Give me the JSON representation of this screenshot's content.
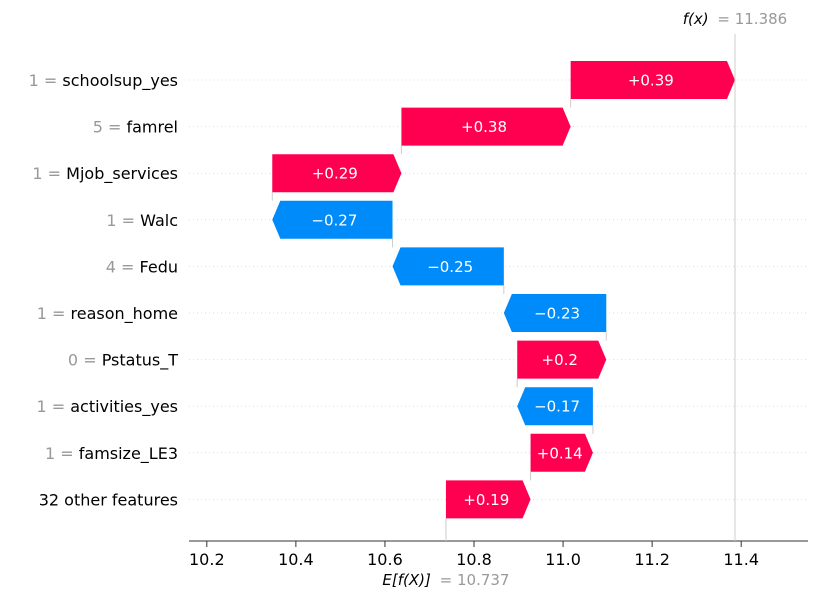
{
  "chart_data": {
    "type": "waterfall",
    "title": "",
    "xlabel": "",
    "ylabel": "",
    "xlim": [
      10.16,
      11.55
    ],
    "xticks": [
      "10.2",
      "10.4",
      "10.6",
      "10.8",
      "11.0",
      "11.2",
      "11.4"
    ],
    "xtick_values": [
      10.2,
      10.4,
      10.6,
      10.8,
      11.0,
      11.2,
      11.4
    ],
    "base_value": 10.737,
    "base_label_prefix": "E[f(X)]",
    "base_label_value": "= 10.737",
    "output_value": 11.386,
    "output_label_prefix": "f(x)",
    "output_label_value": "= 11.386",
    "features": [
      {
        "value": "1",
        "name": "schoolsup_yes",
        "label": "1 = ",
        "name_label": "schoolsup_yes",
        "contribution": 0.39,
        "contribution_label": "+0.39"
      },
      {
        "value": "5",
        "name": "famrel",
        "label": "5 = ",
        "name_label": "famrel",
        "contribution": 0.38,
        "contribution_label": "+0.38"
      },
      {
        "value": "1",
        "name": "Mjob_services",
        "label": "1 = ",
        "name_label": "Mjob_services",
        "contribution": 0.29,
        "contribution_label": "+0.29"
      },
      {
        "value": "1",
        "name": "Walc",
        "label": "1 = ",
        "name_label": "Walc",
        "contribution": -0.27,
        "contribution_label": "−0.27"
      },
      {
        "value": "4",
        "name": "Fedu",
        "label": "4 = ",
        "name_label": "Fedu",
        "contribution": -0.25,
        "contribution_label": "−0.25"
      },
      {
        "value": "1",
        "name": "reason_home",
        "label": "1 = ",
        "name_label": "reason_home",
        "contribution": -0.23,
        "contribution_label": "−0.23"
      },
      {
        "value": "0",
        "name": "Pstatus_T",
        "label": "0 = ",
        "name_label": "Pstatus_T",
        "contribution": 0.2,
        "contribution_label": "+0.2"
      },
      {
        "value": "1",
        "name": "activities_yes",
        "label": "1 = ",
        "name_label": "activities_yes",
        "contribution": -0.17,
        "contribution_label": "−0.17"
      },
      {
        "value": "1",
        "name": "famsize_LE3",
        "label": "1 = ",
        "name_label": "famsize_LE3",
        "contribution": 0.14,
        "contribution_label": "+0.14"
      },
      {
        "value": "",
        "name": "32 other features",
        "label": "",
        "name_label": "32 other features",
        "contribution": 0.19,
        "contribution_label": "+0.19"
      }
    ],
    "colors": {
      "positive": "#ff0051",
      "negative": "#008bfb",
      "label_gray": "#999999",
      "grid": "#dddddd",
      "axis": "#333333"
    },
    "grid": true
  }
}
